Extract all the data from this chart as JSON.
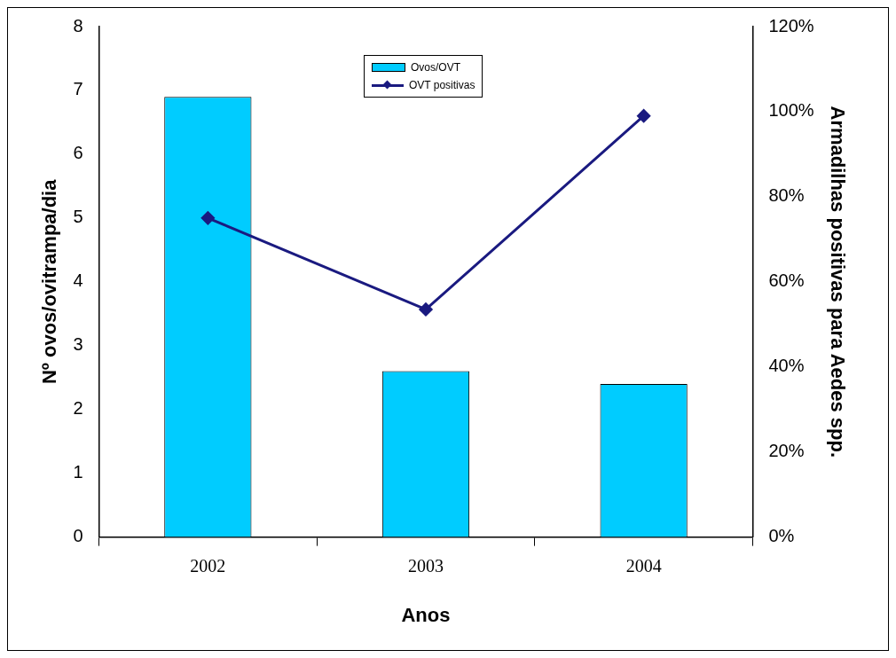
{
  "chart_data": {
    "type": "bar",
    "xlabel": "Anos",
    "ylabel": "Nº ovos/ovitrampa/dia",
    "y2label": "Armadilhas positivas para Aedes spp.",
    "categories": [
      "2002",
      "2003",
      "2004"
    ],
    "series": [
      {
        "name": "Ovos/OVT",
        "color": "#00ccff",
        "values": [
          6.9,
          2.6,
          2.4
        ]
      },
      {
        "name": "OVT positivas",
        "type": "line",
        "axis": "y2",
        "color": "#1a1a80",
        "marker": "diamond",
        "values": [
          75,
          53.5,
          99
        ]
      }
    ],
    "ylim": [
      0,
      8
    ],
    "yticks": [
      0,
      1,
      2,
      3,
      4,
      5,
      6,
      7,
      8
    ],
    "y2lim": [
      0,
      120
    ],
    "y2ticks": [
      {
        "value": 0,
        "label": "0%"
      },
      {
        "value": 20,
        "label": "20%"
      },
      {
        "value": 40,
        "label": "40%"
      },
      {
        "value": 60,
        "label": "60%"
      },
      {
        "value": 80,
        "label": "80%"
      },
      {
        "value": 100,
        "label": "100%"
      },
      {
        "value": 120,
        "label": "120%"
      }
    ],
    "grid": false,
    "legend": "top"
  }
}
